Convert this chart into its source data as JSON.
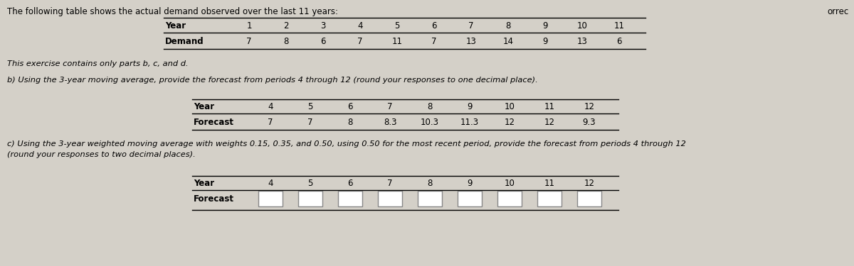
{
  "intro_text": "The following table shows the actual demand observed over the last 11 years:",
  "table1_years": [
    1,
    2,
    3,
    4,
    5,
    6,
    7,
    8,
    9,
    10,
    11
  ],
  "table1_demand": [
    7,
    8,
    6,
    7,
    11,
    7,
    13,
    14,
    9,
    13,
    6
  ],
  "parts_text": "This exercise contains only parts b, c, and d.",
  "part_b_text": "b) Using the 3-year moving average, provide the forecast from periods 4 through 12 (round your responses to one decimal place).",
  "table2_years": [
    4,
    5,
    6,
    7,
    8,
    9,
    10,
    11,
    12
  ],
  "table2_forecast": [
    "7",
    "7",
    "8",
    "8.3",
    "10.3",
    "11.3",
    "12",
    "12",
    "9.3"
  ],
  "part_c_text_line1": "c) Using the 3-year weighted moving average with weights 0.15, 0.35, and 0.50, using 0.50 for the most recent period, provide the forecast from periods 4 through 12",
  "part_c_text_line2": "(round your responses to two decimal places).",
  "table3_years": [
    4,
    5,
    6,
    7,
    8,
    9,
    10,
    11,
    12
  ],
  "orrec_text": "orrec",
  "bg_color": "#d4d0c8",
  "font_size_intro": 8.5,
  "font_size_table_header": 8.5,
  "font_size_table_data": 8.5,
  "font_size_parts": 8.2
}
